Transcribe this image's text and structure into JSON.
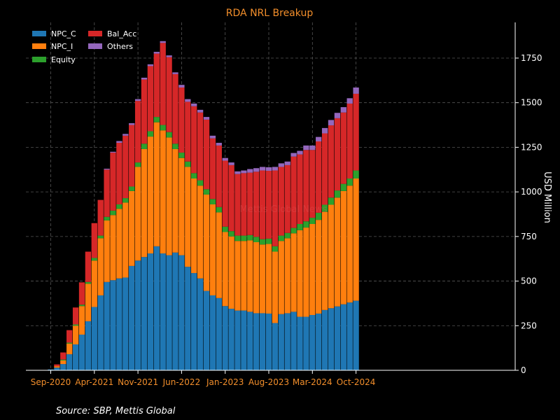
{
  "chart_data": {
    "type": "bar",
    "stacked": true,
    "title": "RDA NRL Breakup",
    "ylabel": "USD Million",
    "ylim": [
      0,
      1950
    ],
    "y_axis_side": "right",
    "yticks": [
      0,
      250,
      500,
      750,
      1000,
      1250,
      1500,
      1750
    ],
    "grid": true,
    "legend_position": "top-left",
    "source": "Source: SBP, Mettis Global",
    "watermark": "Mettis Global News",
    "x_ticks": [
      {
        "label": "Sep-2020",
        "index": 0
      },
      {
        "label": "Apr-2021",
        "index": 7
      },
      {
        "label": "Nov-2021",
        "index": 14
      },
      {
        "label": "Jun-2022",
        "index": 21
      },
      {
        "label": "Jan-2023",
        "index": 28
      },
      {
        "label": "Aug-2023",
        "index": 35
      },
      {
        "label": "Mar-2024",
        "index": 42
      },
      {
        "label": "Oct-2024",
        "index": 49
      }
    ],
    "categories": [
      "Sep-2020",
      "Oct-2020",
      "Nov-2020",
      "Dec-2020",
      "Jan-2021",
      "Feb-2021",
      "Mar-2021",
      "Apr-2021",
      "May-2021",
      "Jun-2021",
      "Jul-2021",
      "Aug-2021",
      "Sep-2021",
      "Oct-2021",
      "Nov-2021",
      "Dec-2021",
      "Jan-2022",
      "Feb-2022",
      "Mar-2022",
      "Apr-2022",
      "May-2022",
      "Jun-2022",
      "Jul-2022",
      "Aug-2022",
      "Sep-2022",
      "Oct-2022",
      "Nov-2022",
      "Dec-2022",
      "Jan-2023",
      "Feb-2023",
      "Mar-2023",
      "Apr-2023",
      "May-2023",
      "Jun-2023",
      "Jul-2023",
      "Aug-2023",
      "Sep-2023",
      "Oct-2023",
      "Nov-2023",
      "Dec-2023",
      "Jan-2024",
      "Feb-2024",
      "Mar-2024",
      "Apr-2024",
      "May-2024",
      "Jun-2024",
      "Jul-2024",
      "Aug-2024",
      "Sep-2024",
      "Oct-2024"
    ],
    "colors": {
      "NPC_C": "#1f77b4",
      "NPC_I": "#ff7f0e",
      "Equity": "#2ca02c",
      "Bal_Acc": "#d62728",
      "Others": "#9467bd"
    },
    "series": [
      {
        "name": "NPC_C",
        "values": [
          5,
          15,
          35,
          90,
          145,
          200,
          275,
          355,
          420,
          495,
          505,
          515,
          520,
          585,
          615,
          635,
          655,
          695,
          655,
          645,
          660,
          645,
          580,
          545,
          515,
          445,
          420,
          405,
          360,
          345,
          335,
          335,
          328,
          320,
          320,
          318,
          265,
          315,
          320,
          328,
          300,
          300,
          310,
          318,
          338,
          348,
          358,
          370,
          380,
          390
        ]
      },
      {
        "name": "NPC_I",
        "values": [
          0,
          8,
          20,
          60,
          105,
          160,
          210,
          260,
          320,
          345,
          365,
          390,
          420,
          420,
          525,
          605,
          655,
          695,
          690,
          660,
          580,
          545,
          560,
          530,
          520,
          540,
          510,
          480,
          415,
          405,
          390,
          390,
          400,
          398,
          385,
          390,
          400,
          410,
          420,
          440,
          485,
          500,
          510,
          525,
          550,
          580,
          610,
          635,
          655,
          685
        ]
      },
      {
        "name": "Equity",
        "values": [
          0,
          0,
          5,
          5,
          7,
          8,
          10,
          15,
          15,
          20,
          25,
          25,
          25,
          25,
          25,
          30,
          30,
          30,
          30,
          30,
          30,
          30,
          30,
          30,
          30,
          30,
          30,
          30,
          30,
          30,
          30,
          30,
          30,
          30,
          30,
          30,
          30,
          30,
          30,
          30,
          35,
          35,
          35,
          40,
          40,
          40,
          40,
          40,
          40,
          45
        ]
      },
      {
        "name": "Bal_Acc",
        "values": [
          0,
          10,
          40,
          70,
          95,
          125,
          170,
          195,
          200,
          265,
          325,
          345,
          350,
          345,
          345,
          360,
          365,
          355,
          460,
          420,
          390,
          365,
          335,
          375,
          380,
          390,
          340,
          345,
          370,
          370,
          345,
          350,
          350,
          365,
          385,
          380,
          425,
          385,
          380,
          400,
          390,
          400,
          380,
          400,
          400,
          405,
          405,
          400,
          420,
          430
        ]
      },
      {
        "name": "Others",
        "values": [
          0,
          0,
          0,
          0,
          0,
          0,
          0,
          0,
          0,
          5,
          5,
          10,
          10,
          10,
          10,
          10,
          10,
          10,
          10,
          10,
          10,
          15,
          15,
          15,
          15,
          15,
          15,
          15,
          15,
          15,
          15,
          15,
          20,
          20,
          20,
          20,
          20,
          20,
          20,
          20,
          20,
          25,
          25,
          25,
          30,
          30,
          30,
          30,
          30,
          35
        ]
      }
    ]
  }
}
